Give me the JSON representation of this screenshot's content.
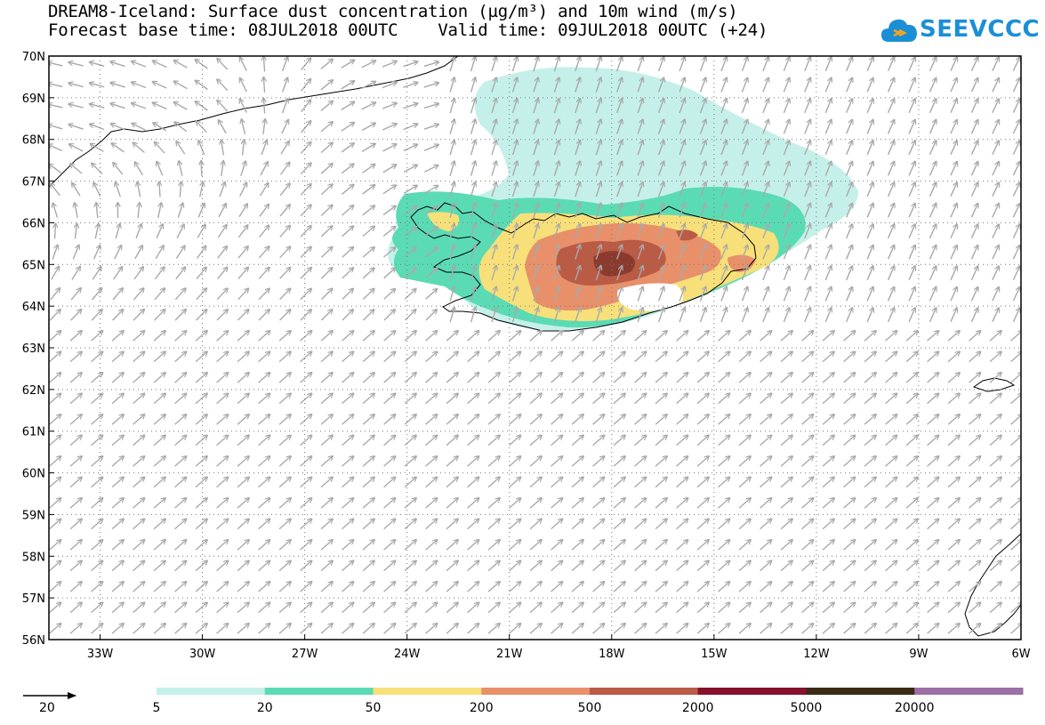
{
  "header": {
    "title_line1": "DREAM8-Iceland: Surface dust concentration (µg/m³) and 10m wind (m/s)",
    "title_line2": "Forecast base time: 08JUL2018 00UTC    Valid time: 09JUL2018 00UTC (+24)"
  },
  "logo": {
    "text": "SEEVCCC",
    "color": "#1b8fd6",
    "icon": "cloud-icon"
  },
  "map": {
    "lon_range": [
      -34.5,
      -6
    ],
    "lat_range": [
      56,
      70
    ],
    "lon_ticks": [
      "33W",
      "30W",
      "27W",
      "24W",
      "21W",
      "18W",
      "15W",
      "12W",
      "9W",
      "6W"
    ],
    "lat_ticks": [
      "56N",
      "57N",
      "58N",
      "59N",
      "60N",
      "61N",
      "62N",
      "63N",
      "64N",
      "65N",
      "66N",
      "67N",
      "68N",
      "69N",
      "70N"
    ],
    "grid": "dotted",
    "wind_arrow_color": "#a9a9a9"
  },
  "legend": {
    "vector_scale_label": "20",
    "levels": [
      "5",
      "20",
      "50",
      "200",
      "500",
      "2000",
      "5000",
      "20000"
    ],
    "colors": [
      "#c5f0ea",
      "#5bdbb4",
      "#f7e07a",
      "#e8906a",
      "#b95b45",
      "#85112c",
      "#3b2a16",
      "#9c6fa6"
    ]
  }
}
